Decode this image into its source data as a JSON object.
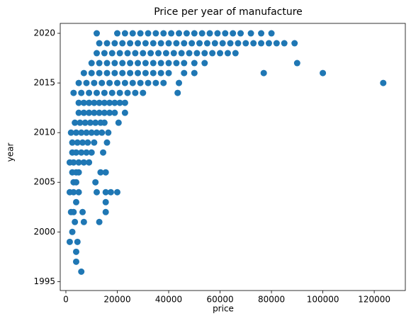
{
  "chart_data": {
    "type": "scatter",
    "title": "Price per year of manufacture",
    "x_label": "price",
    "y_label": "year",
    "color": "#1f77b4",
    "x": [
      6000,
      4000,
      4000,
      1500,
      4500,
      2500,
      3500,
      7000,
      13000,
      2000,
      3000,
      6500,
      15500,
      4000,
      15500,
      1500,
      3000,
      5000,
      12000,
      15500,
      17500,
      20000,
      3000,
      4000,
      11500,
      2500,
      4000,
      5000,
      13500,
      15500,
      1500,
      3000,
      5000,
      7000,
      9000,
      2500,
      4000,
      6000,
      8000,
      10000,
      14500,
      2500,
      4500,
      6500,
      8500,
      11000,
      16000,
      2000,
      4000,
      6000,
      8000,
      10000,
      12000,
      14000,
      16500,
      3500,
      5500,
      7500,
      9500,
      11500,
      13500,
      15000,
      20500,
      5000,
      7000,
      9000,
      11000,
      13000,
      15000,
      17000,
      19000,
      23000,
      5000,
      7000,
      9000,
      11000,
      13000,
      15000,
      17000,
      19000,
      21000,
      23000,
      3000,
      6000,
      9000,
      12000,
      15000,
      18000,
      21000,
      24000,
      27000,
      30000,
      43500,
      5000,
      8000,
      11000,
      14000,
      17000,
      20000,
      23000,
      26000,
      29000,
      32000,
      35000,
      38000,
      44000,
      123500,
      7000,
      10000,
      13000,
      16000,
      19000,
      22000,
      25000,
      28000,
      31000,
      34000,
      37000,
      40000,
      46000,
      50000,
      77000,
      100000,
      10000,
      13000,
      16000,
      19000,
      22000,
      25000,
      28000,
      31000,
      34000,
      37000,
      40000,
      43000,
      46000,
      50000,
      54000,
      90000,
      12000,
      15000,
      18000,
      21000,
      24000,
      27000,
      30000,
      33000,
      36000,
      39000,
      42000,
      45000,
      48000,
      51000,
      54000,
      57000,
      60000,
      63000,
      66000,
      13000,
      16000,
      19000,
      22000,
      25000,
      28000,
      31000,
      34000,
      37000,
      40000,
      43000,
      46000,
      49000,
      52000,
      55000,
      58000,
      61000,
      64000,
      67000,
      70000,
      73000,
      76000,
      79000,
      82000,
      85000,
      89000,
      12000,
      20000,
      23000,
      26000,
      29000,
      32000,
      35000,
      38000,
      41000,
      44000,
      47000,
      50000,
      53000,
      56000,
      59000,
      62000,
      65000,
      68000,
      72000,
      76000,
      80000
    ],
    "values": [
      1996,
      1997,
      1998,
      1999,
      1999,
      2000,
      2001,
      2001,
      2001,
      2002,
      2002,
      2002,
      2002,
      2003,
      2003,
      2004,
      2004,
      2004,
      2004,
      2004,
      2004,
      2004,
      2005,
      2005,
      2005,
      2006,
      2006,
      2006,
      2006,
      2006,
      2007,
      2007,
      2007,
      2007,
      2007,
      2008,
      2008,
      2008,
      2008,
      2008,
      2008,
      2009,
      2009,
      2009,
      2009,
      2009,
      2009,
      2010,
      2010,
      2010,
      2010,
      2010,
      2010,
      2010,
      2010,
      2011,
      2011,
      2011,
      2011,
      2011,
      2011,
      2011,
      2011,
      2012,
      2012,
      2012,
      2012,
      2012,
      2012,
      2012,
      2012,
      2012,
      2013,
      2013,
      2013,
      2013,
      2013,
      2013,
      2013,
      2013,
      2013,
      2013,
      2014,
      2014,
      2014,
      2014,
      2014,
      2014,
      2014,
      2014,
      2014,
      2014,
      2014,
      2015,
      2015,
      2015,
      2015,
      2015,
      2015,
      2015,
      2015,
      2015,
      2015,
      2015,
      2015,
      2015,
      2015,
      2016,
      2016,
      2016,
      2016,
      2016,
      2016,
      2016,
      2016,
      2016,
      2016,
      2016,
      2016,
      2016,
      2016,
      2016,
      2016,
      2017,
      2017,
      2017,
      2017,
      2017,
      2017,
      2017,
      2017,
      2017,
      2017,
      2017,
      2017,
      2017,
      2017,
      2017,
      2017,
      2018,
      2018,
      2018,
      2018,
      2018,
      2018,
      2018,
      2018,
      2018,
      2018,
      2018,
      2018,
      2018,
      2018,
      2018,
      2018,
      2018,
      2018,
      2018,
      2019,
      2019,
      2019,
      2019,
      2019,
      2019,
      2019,
      2019,
      2019,
      2019,
      2019,
      2019,
      2019,
      2019,
      2019,
      2019,
      2019,
      2019,
      2019,
      2019,
      2019,
      2019,
      2019,
      2019,
      2019,
      2019,
      2020,
      2020,
      2020,
      2020,
      2020,
      2020,
      2020,
      2020,
      2020,
      2020,
      2020,
      2020,
      2020,
      2020,
      2020,
      2020,
      2020,
      2020,
      2020,
      2020,
      2020
    ],
    "xlim": [
      -2200,
      132100
    ],
    "ylim": [
      1994.1,
      2021.0
    ],
    "xticks": [
      0,
      20000,
      40000,
      60000,
      80000,
      100000,
      120000
    ],
    "yticks": [
      1995,
      2000,
      2005,
      2010,
      2015,
      2020
    ]
  }
}
